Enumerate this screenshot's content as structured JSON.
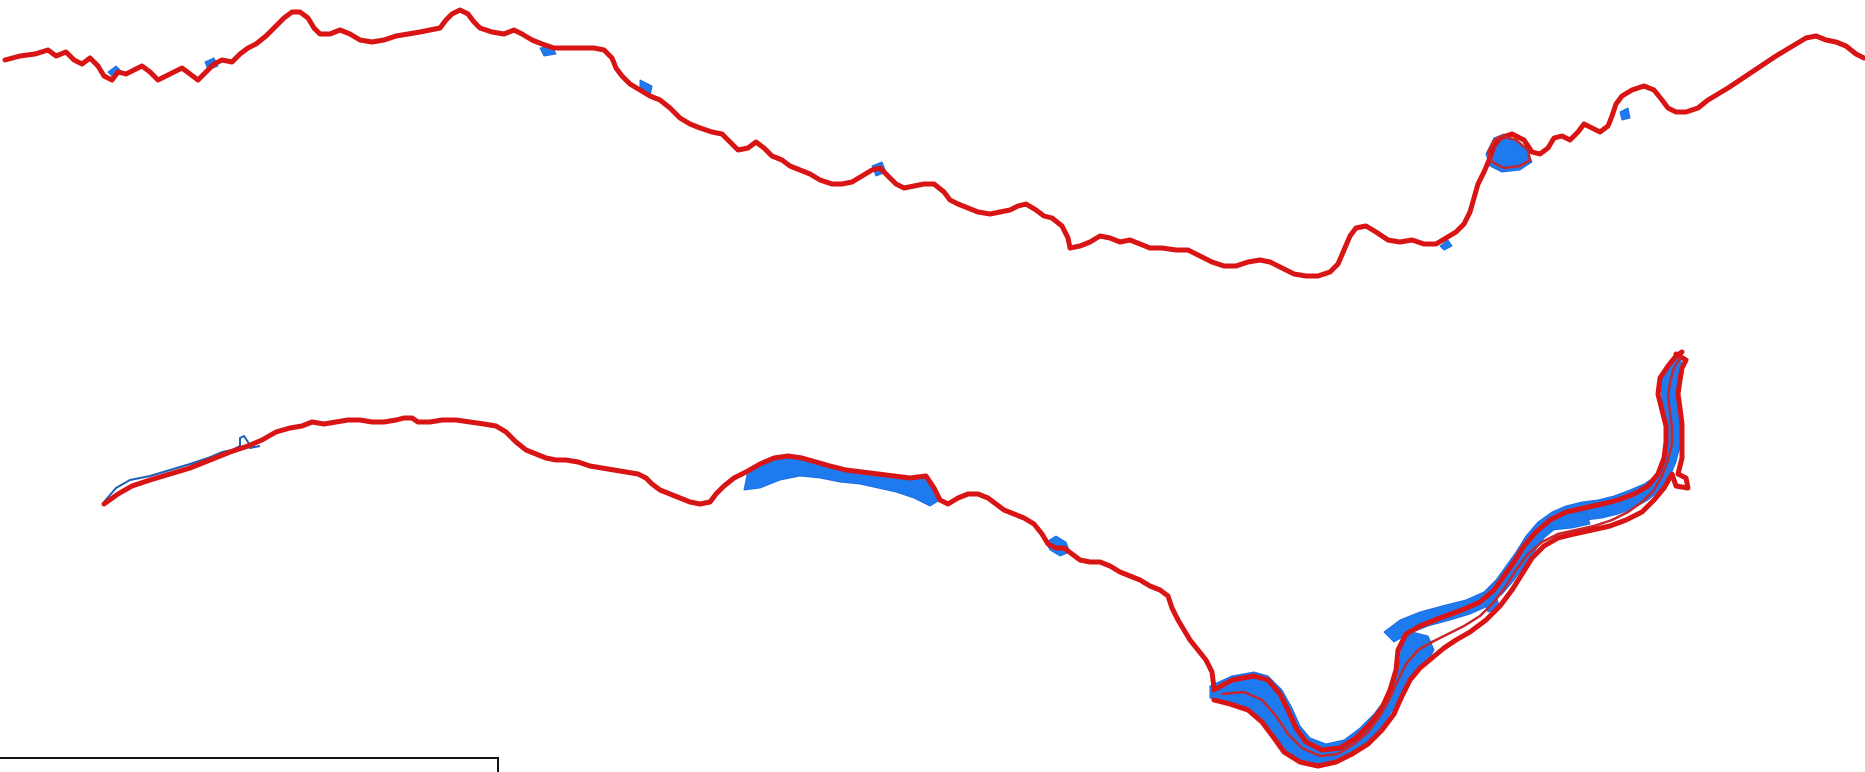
{
  "map": {
    "colors": {
      "background": "#ffffff",
      "water_fill": "#1e7bef",
      "boundary_stroke": "#d81414",
      "frame_stroke": "#111111"
    },
    "layers": [
      {
        "name": "upper-river-reach",
        "kind": "river-channel-boundary"
      },
      {
        "name": "lower-river-reach",
        "kind": "river-channel-boundary"
      },
      {
        "name": "inset-frame",
        "kind": "map-frame"
      }
    ]
  }
}
